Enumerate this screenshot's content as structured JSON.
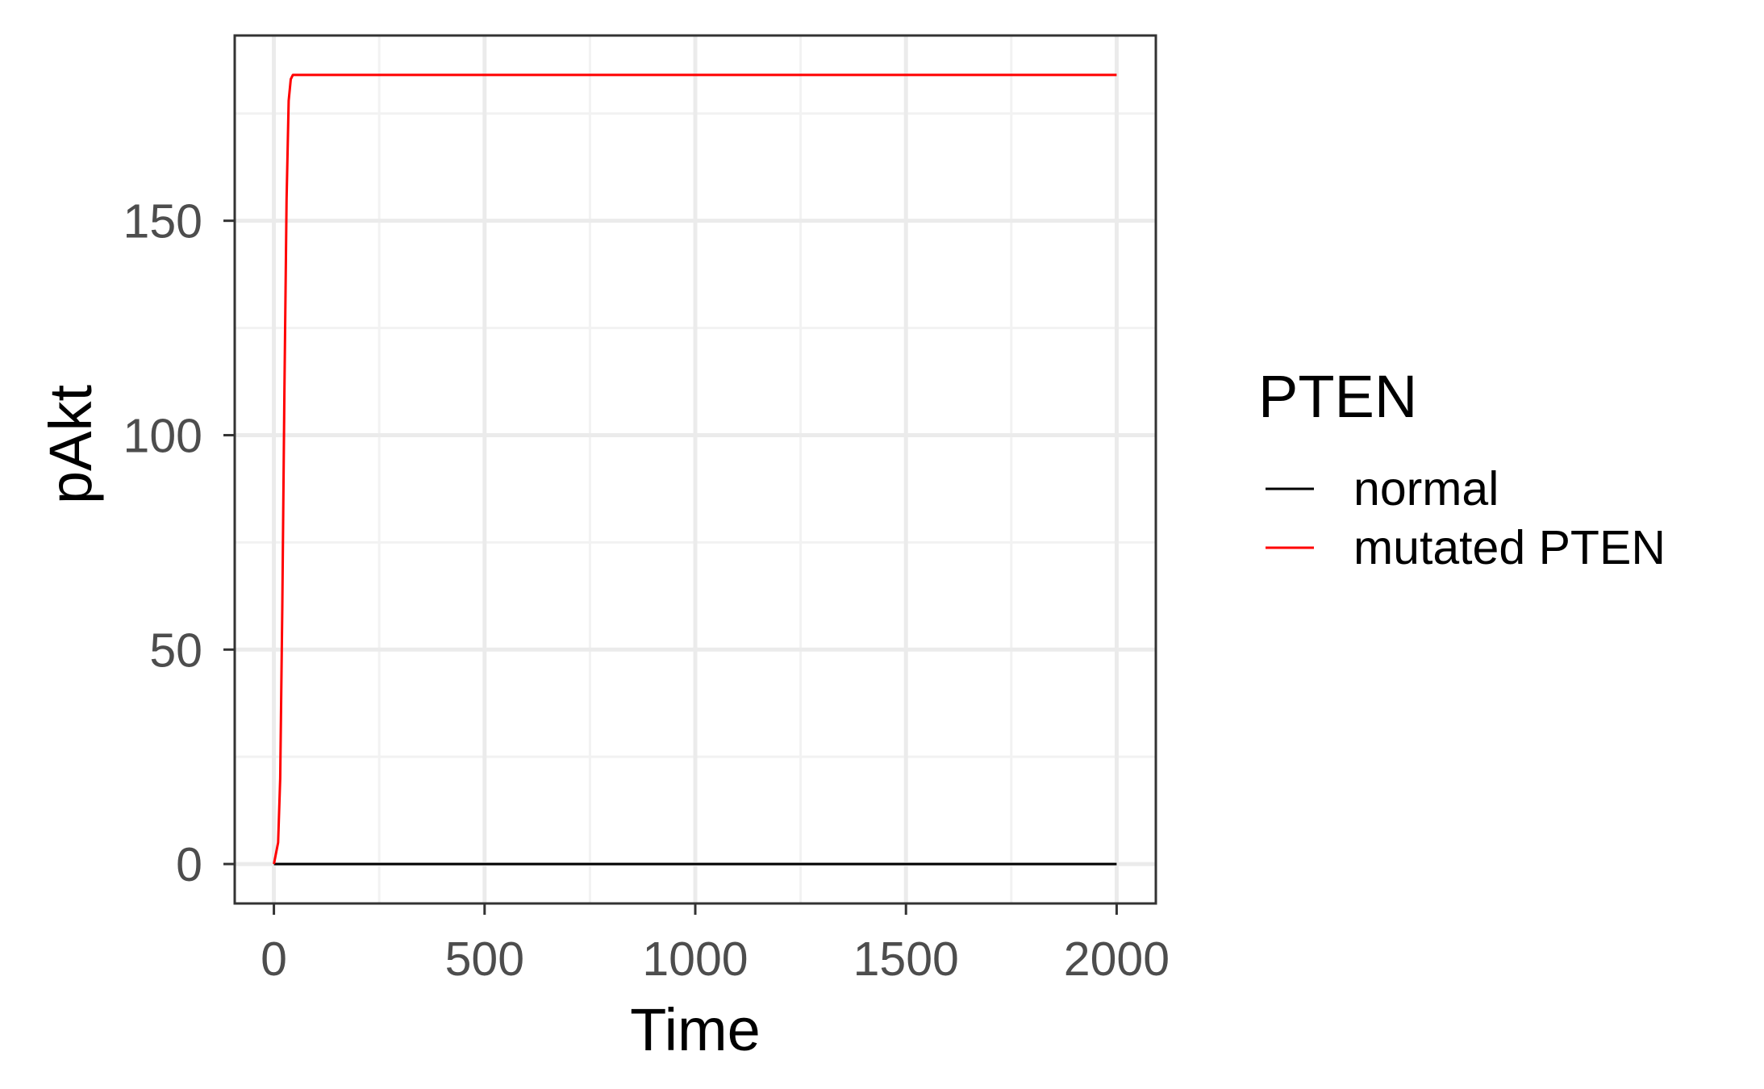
{
  "chart_data": {
    "type": "line",
    "title": "",
    "xlabel": "Time",
    "ylabel": "pAkt",
    "xlim": [
      -93,
      2093
    ],
    "ylim": [
      -9.2,
      193.2
    ],
    "x_ticks": [
      0,
      500,
      1000,
      1500,
      2000
    ],
    "x_tick_labels": [
      "0",
      "500",
      "1000",
      "1500",
      "2000"
    ],
    "y_ticks": [
      0,
      50,
      100,
      150
    ],
    "y_tick_labels": [
      "0",
      "50",
      "100",
      "150"
    ],
    "grid": true,
    "legend": {
      "title": "PTEN",
      "placement": "right",
      "entries": [
        "normal",
        "mutated PTEN"
      ]
    },
    "series": [
      {
        "name": "normal",
        "color": "#000000",
        "x": [
          0,
          500,
          1000,
          1500,
          2000
        ],
        "y": [
          0,
          0,
          0,
          0,
          0
        ]
      },
      {
        "name": "mutated PTEN",
        "color": "#ff0000",
        "x": [
          0,
          10,
          15,
          20,
          25,
          30,
          35,
          40,
          45,
          50,
          500,
          1000,
          1500,
          2000
        ],
        "y": [
          0,
          5,
          20,
          60,
          110,
          155,
          178,
          183,
          184,
          184,
          184,
          184,
          184,
          184
        ]
      }
    ],
    "colors": {
      "panel_border": "#333333",
      "grid_major": "#ebebeb",
      "grid_minor": "#f2f2f2",
      "tick_label": "#4d4d4d"
    }
  }
}
